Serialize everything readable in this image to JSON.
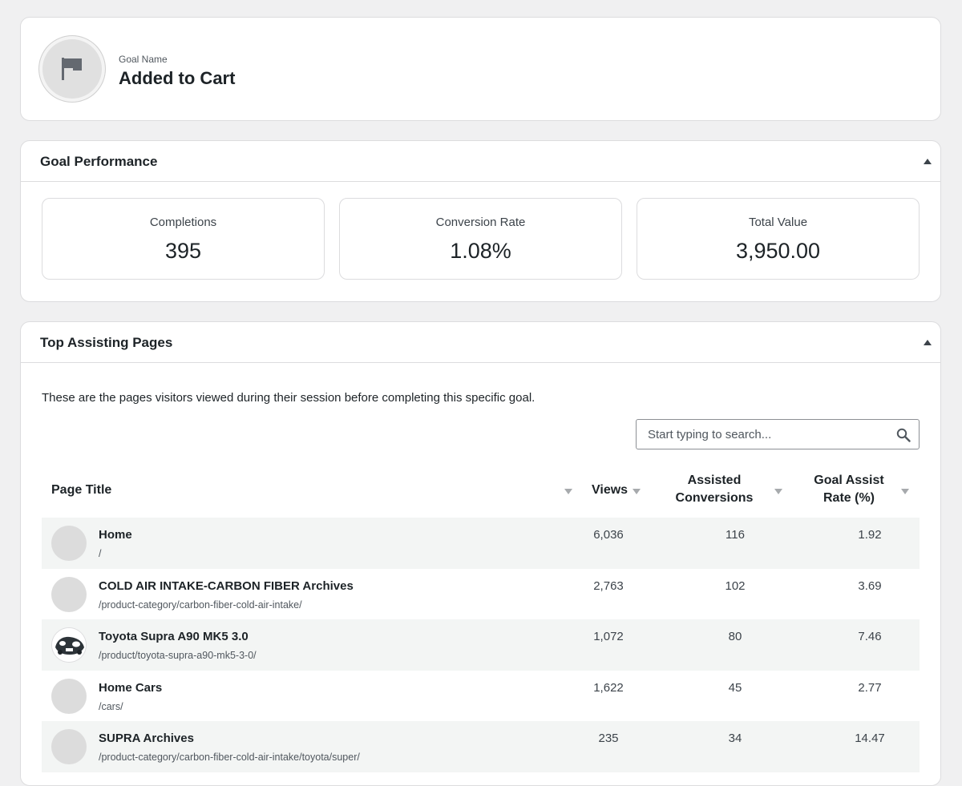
{
  "goal": {
    "label": "Goal Name",
    "name": "Added to Cart",
    "icon": "flag-icon"
  },
  "performance": {
    "title": "Goal Performance",
    "metrics": [
      {
        "label": "Completions",
        "value": "395"
      },
      {
        "label": "Conversion Rate",
        "value": "1.08%"
      },
      {
        "label": "Total Value",
        "value": "3,950.00"
      }
    ]
  },
  "pages": {
    "title": "Top Assisting Pages",
    "description": "These are the pages visitors viewed during their session before completing this specific goal.",
    "search_placeholder": "Start typing to search...",
    "columns": {
      "title": "Page Title",
      "views": "Views",
      "assisted_line1": "Assisted",
      "assisted_line2": "Conversions",
      "rate_line1": "Goal Assist",
      "rate_line2": "Rate (%)"
    },
    "rows": [
      {
        "title": "Home",
        "path": "/",
        "views": "6,036",
        "assisted": "116",
        "rate": "1.92",
        "thumb": "placeholder"
      },
      {
        "title": "COLD AIR INTAKE-CARBON FIBER Archives",
        "path": "/product-category/carbon-fiber-cold-air-intake/",
        "views": "2,763",
        "assisted": "102",
        "rate": "3.69",
        "thumb": "placeholder"
      },
      {
        "title": "Toyota Supra A90 MK5 3.0",
        "path": "/product/toyota-supra-a90-mk5-3-0/",
        "views": "1,072",
        "assisted": "80",
        "rate": "7.46",
        "thumb": "product-image"
      },
      {
        "title": "Home Cars",
        "path": "/cars/",
        "views": "1,622",
        "assisted": "45",
        "rate": "2.77",
        "thumb": "placeholder"
      },
      {
        "title": "SUPRA Archives",
        "path": "/product-category/carbon-fiber-cold-air-intake/toyota/super/",
        "views": "235",
        "assisted": "34",
        "rate": "14.47",
        "thumb": "placeholder"
      }
    ]
  },
  "colors": {
    "background": "#f0f0f1",
    "card": "#ffffff",
    "border": "#dcdcde",
    "row_alt": "#f3f5f4",
    "text": "#1d2327"
  }
}
